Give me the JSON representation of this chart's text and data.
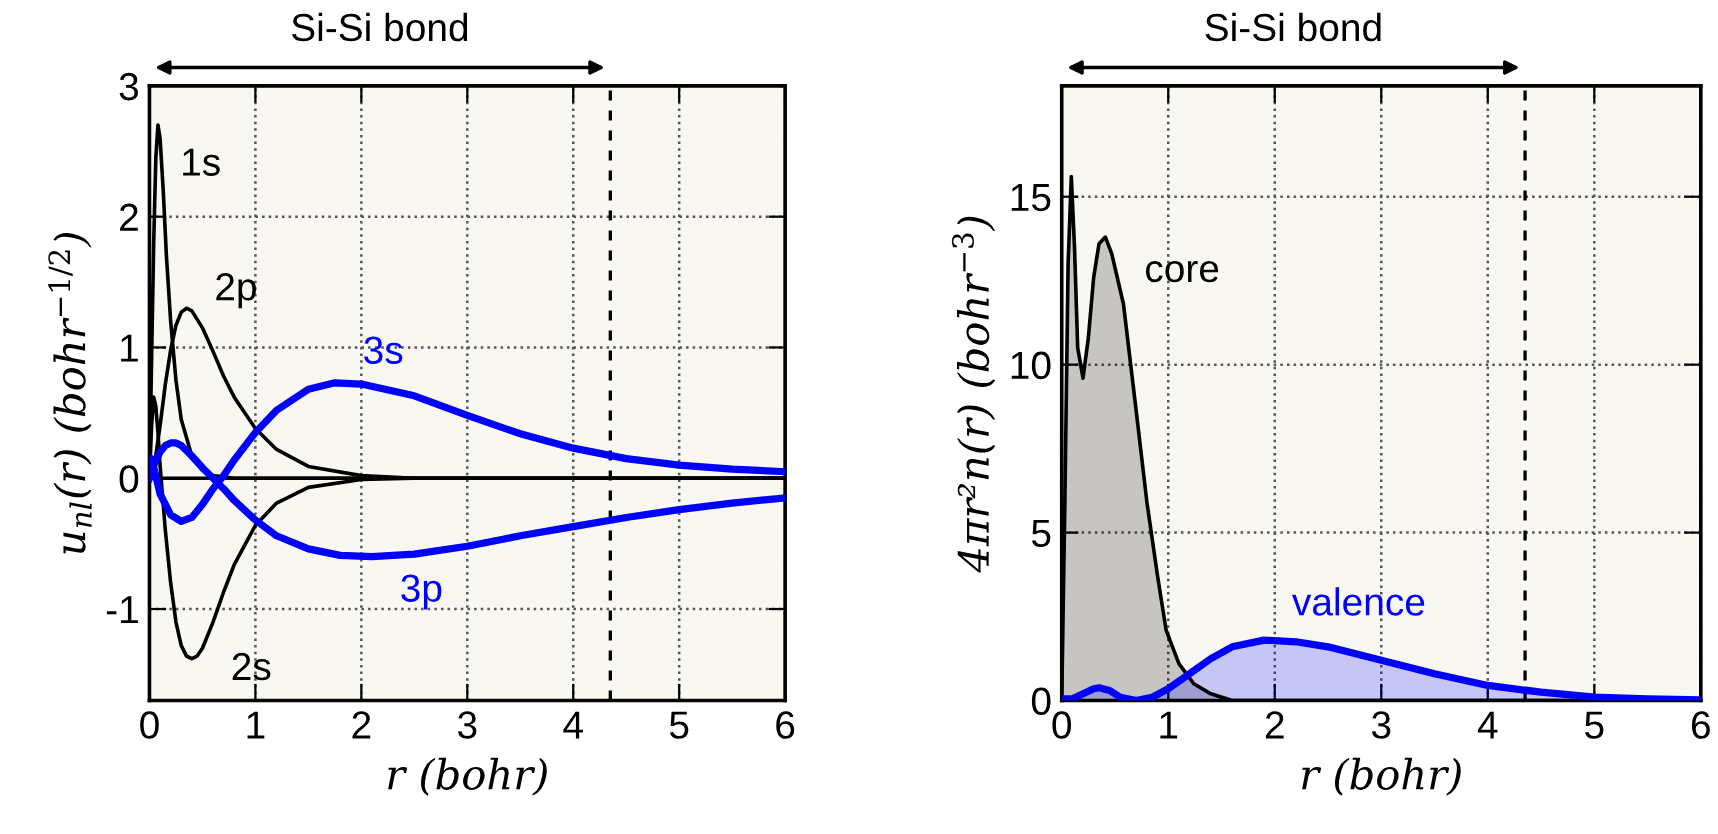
{
  "chart_data": [
    {
      "type": "line",
      "xlabel": "r (bohr)",
      "ylabel": "u$_{nl}$(r) (bohr$^{−1/2}$)",
      "xlim": [
        0,
        6
      ],
      "xticks": [
        0,
        1,
        2,
        3,
        4,
        5,
        6
      ],
      "ylim": [
        -1.7,
        3
      ],
      "yticks": [
        -1,
        0,
        1,
        2,
        3
      ],
      "grid": true,
      "series": [
        {
          "name": "1s",
          "color": "#000000",
          "x": [
            0,
            0.02,
            0.04,
            0.06,
            0.08,
            0.1,
            0.13,
            0.16,
            0.2,
            0.25,
            0.3,
            0.4,
            0.5,
            0.6,
            0.8,
            1.0,
            1.5,
            2,
            3,
            6
          ],
          "values": [
            0,
            0.9,
            1.8,
            2.45,
            2.7,
            2.6,
            2.2,
            1.7,
            1.2,
            0.75,
            0.45,
            0.17,
            0.06,
            0.02,
            0,
            0,
            0,
            0,
            0,
            0
          ]
        },
        {
          "name": "2s",
          "color": "#000000",
          "x": [
            0,
            0.02,
            0.04,
            0.06,
            0.08,
            0.1,
            0.12,
            0.15,
            0.2,
            0.25,
            0.3,
            0.35,
            0.4,
            0.45,
            0.5,
            0.6,
            0.7,
            0.8,
            1.0,
            1.2,
            1.5,
            2.0,
            2.5,
            3,
            6
          ],
          "values": [
            0,
            0.4,
            0.62,
            0.55,
            0.35,
            0.1,
            -0.1,
            -0.4,
            -0.8,
            -1.1,
            -1.28,
            -1.36,
            -1.38,
            -1.36,
            -1.3,
            -1.1,
            -0.87,
            -0.66,
            -0.36,
            -0.19,
            -0.07,
            -0.01,
            0,
            0,
            0
          ]
        },
        {
          "name": "2p",
          "color": "#000000",
          "x": [
            0,
            0.05,
            0.1,
            0.15,
            0.2,
            0.25,
            0.3,
            0.35,
            0.4,
            0.5,
            0.6,
            0.7,
            0.8,
            1.0,
            1.2,
            1.5,
            2,
            2.5,
            3,
            6
          ],
          "values": [
            0,
            0.12,
            0.4,
            0.72,
            0.98,
            1.17,
            1.27,
            1.3,
            1.28,
            1.15,
            0.97,
            0.78,
            0.62,
            0.38,
            0.22,
            0.09,
            0.02,
            0,
            0,
            0
          ]
        },
        {
          "name": "3s",
          "color": "#0000ff",
          "x": [
            0,
            0.02,
            0.05,
            0.1,
            0.2,
            0.3,
            0.4,
            0.5,
            0.6,
            0.7,
            0.8,
            1.0,
            1.2,
            1.5,
            1.75,
            2.0,
            2.5,
            3,
            3.5,
            4,
            4.5,
            5,
            5.5,
            6
          ],
          "values": [
            0.1,
            0.15,
            0.05,
            -0.12,
            -0.28,
            -0.33,
            -0.3,
            -0.2,
            -0.08,
            0.02,
            0.14,
            0.35,
            0.52,
            0.68,
            0.73,
            0.72,
            0.63,
            0.48,
            0.34,
            0.23,
            0.15,
            0.1,
            0.07,
            0.05
          ]
        },
        {
          "name": "3p",
          "color": "#0000ff",
          "x": [
            0,
            0.05,
            0.1,
            0.15,
            0.2,
            0.25,
            0.3,
            0.4,
            0.5,
            0.6,
            0.7,
            0.8,
            1.0,
            1.2,
            1.5,
            1.8,
            2.1,
            2.5,
            3,
            3.5,
            4,
            4.5,
            5,
            5.5,
            6
          ],
          "values": [
            0,
            0.12,
            0.2,
            0.25,
            0.27,
            0.27,
            0.25,
            0.17,
            0.08,
            0.0,
            -0.08,
            -0.17,
            -0.32,
            -0.44,
            -0.54,
            -0.59,
            -0.6,
            -0.58,
            -0.52,
            -0.44,
            -0.37,
            -0.3,
            -0.24,
            -0.19,
            -0.15
          ]
        }
      ],
      "ref_lines": [
        {
          "axis": "y",
          "value": 0,
          "color": "#000000",
          "line_style": "solid"
        },
        {
          "axis": "x",
          "value": 4.35,
          "color": "#000000",
          "line_style": "dashed"
        }
      ],
      "annotations": [
        "Si-Si bond"
      ]
    },
    {
      "type": "area",
      "xlabel": "r (bohr)",
      "ylabel": "4πr²n(r) (bohr$^{−3}$)",
      "xlim": [
        0,
        6
      ],
      "xticks": [
        0,
        1,
        2,
        3,
        4,
        5,
        6
      ],
      "ylim": [
        0,
        18.3
      ],
      "yticks": [
        0,
        5,
        10,
        15
      ],
      "grid": true,
      "series": [
        {
          "name": "core",
          "color": "#000000",
          "x": [
            0,
            0.03,
            0.06,
            0.09,
            0.12,
            0.15,
            0.2,
            0.25,
            0.3,
            0.35,
            0.41,
            0.47,
            0.58,
            0.7,
            0.8,
            0.9,
            0.98,
            1.1,
            1.24,
            1.4,
            1.6,
            2,
            6
          ],
          "values": [
            0,
            6,
            13,
            15.6,
            13.5,
            10.5,
            9.6,
            10.8,
            12.6,
            13.6,
            13.8,
            13.3,
            11.8,
            8.6,
            5.9,
            3.7,
            2.1,
            1.1,
            0.5,
            0.2,
            0,
            0,
            0
          ]
        },
        {
          "name": "valence",
          "color": "#0000ff",
          "x": [
            0,
            0.1,
            0.2,
            0.3,
            0.35,
            0.45,
            0.55,
            0.7,
            0.85,
            1.0,
            1.2,
            1.4,
            1.6,
            1.9,
            2.2,
            2.5,
            3,
            3.5,
            4,
            4.5,
            5,
            5.5,
            6
          ],
          "values": [
            0.05,
            0.05,
            0.2,
            0.35,
            0.38,
            0.3,
            0.1,
            0,
            0.1,
            0.35,
            0.8,
            1.25,
            1.6,
            1.8,
            1.75,
            1.6,
            1.2,
            0.8,
            0.45,
            0.25,
            0.1,
            0.05,
            0.02
          ]
        }
      ],
      "ref_lines": [
        {
          "axis": "x",
          "value": 4.35,
          "color": "#000000",
          "line_style": "dashed"
        }
      ],
      "annotations": [
        "Si-Si bond"
      ]
    }
  ]
}
